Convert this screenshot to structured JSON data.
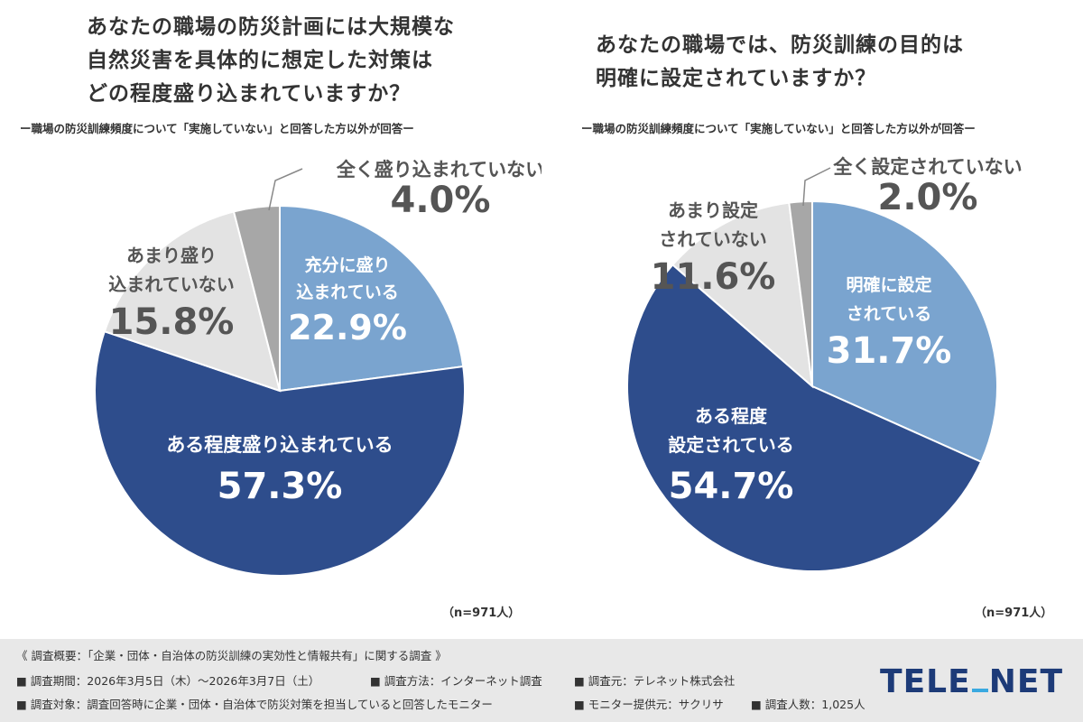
{
  "charts": [
    {
      "title_lines": [
        "あなたの職場の防災計画には大規模な",
        "自然災害を具体的に想定した対策は",
        "どの程度盛り込まれていますか？"
      ],
      "subtitle": "ー職場の防災訓練頻度について「実施していない」と回答した方以外が回答ー",
      "note": "（n=971人）"
    },
    {
      "title_lines": [
        "あなたの職場では、防災訓練の目的は",
        "明確に設定されていますか？"
      ],
      "subtitle": "ー職場の防災訓練頻度について「実施していない」と回答した方以外が回答ー",
      "note": "（n=971人）"
    }
  ],
  "chart_data": [
    {
      "type": "pie",
      "slices": [
        {
          "label": [
            "充分に盛り",
            "込まれている"
          ],
          "value": 22.9,
          "value_label": "22.9%",
          "color": "#7aa4cf"
        },
        {
          "label": [
            "ある程度盛り込まれている"
          ],
          "value": 57.3,
          "value_label": "57.3%",
          "color": "#2e4d8c"
        },
        {
          "label": [
            "あまり盛り",
            "込まれていない"
          ],
          "value": 15.8,
          "value_label": "15.8%",
          "color": "#e3e3e3"
        },
        {
          "label": [
            "全く盛り込まれていない"
          ],
          "value": 4.0,
          "value_label": "4.0%",
          "color": "#a7a7a7"
        }
      ]
    },
    {
      "type": "pie",
      "slices": [
        {
          "label": [
            "明確に設定",
            "されている"
          ],
          "value": 31.7,
          "value_label": "31.7%",
          "color": "#7aa4cf"
        },
        {
          "label": [
            "ある程度",
            "設定されている"
          ],
          "value": 54.7,
          "value_label": "54.7%",
          "color": "#2e4d8c"
        },
        {
          "label": [
            "あまり設定",
            "されていない"
          ],
          "value": 11.6,
          "value_label": "11.6%",
          "color": "#e3e3e3"
        },
        {
          "label": [
            "全く設定されていない"
          ],
          "value": 2.0,
          "value_label": "2.0%",
          "color": "#a7a7a7"
        }
      ]
    }
  ],
  "footer": {
    "heading": "《 調査概要：「企業・団体・自治体の防災訓練の実効性と情報共有」に関する調査 》",
    "period": "■ 調査期間：2026年3月5日（木）〜2026年3月7日（土）",
    "method": "■ 調査方法：インターネット調査",
    "source": "■ 調査元：テレネット株式会社",
    "target": "■ 調査対象：調査回答時に企業・団体・自治体で防災対策を担当していると回答したモニター",
    "provider": "■ モニター提供元：サクリサ",
    "count": "■ 調査人数：1,025人"
  },
  "logo": {
    "part1": "TELE",
    "part2": "NET"
  }
}
